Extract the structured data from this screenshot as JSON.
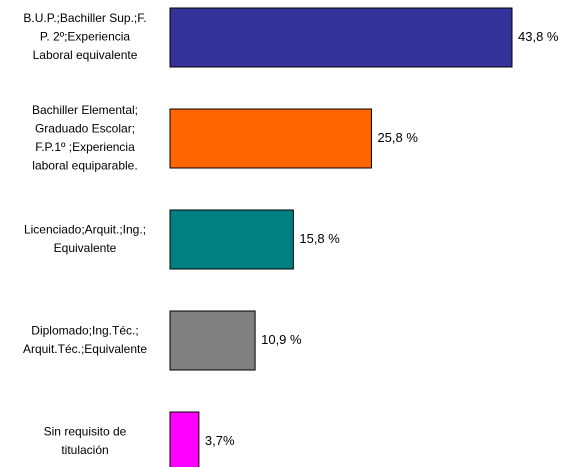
{
  "chart_data": {
    "type": "bar",
    "orientation": "horizontal",
    "categories": [
      [
        "B.U.P.;Bachiller Sup.;F.",
        "P. 2º;Experiencia",
        "Laboral equivalente"
      ],
      [
        "Bachiller Elemental;",
        "Graduado Escolar;",
        "F.P.1º ;Experiencia",
        "laboral equiparable."
      ],
      [
        "Licenciado;Arquit.;Ing.;",
        "Equivalente"
      ],
      [
        "Diplomado;Ing.Téc.;",
        "Arquit.Téc.;Equivalente"
      ],
      [
        "Sin requisito de",
        "titulación"
      ]
    ],
    "values": [
      43.8,
      25.8,
      15.8,
      10.9,
      3.7
    ],
    "value_labels": [
      "43,8 %",
      "25,8 %",
      "15,8 %",
      "10,9 %",
      "3,7%"
    ],
    "colors": [
      "#333399",
      "#ff6600",
      "#008080",
      "#808080",
      "#ff00ff"
    ]
  }
}
